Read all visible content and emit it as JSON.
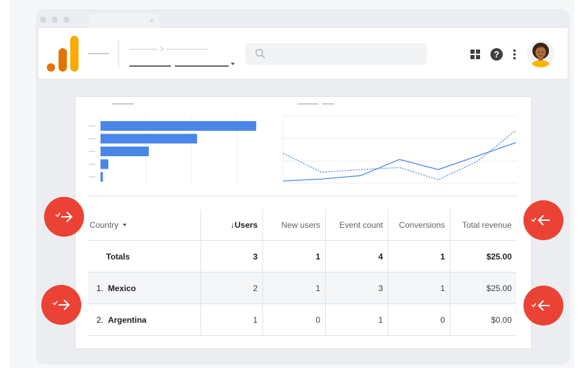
{
  "window": {
    "tab_close_glyph": "×",
    "icons": [
      "apps-grid-icon",
      "help-icon",
      "more-vert-icon",
      "avatar"
    ]
  },
  "colors": {
    "accent_blue": "#4a86e8",
    "fab_red": "#ea4335",
    "logo_orange_dark": "#e37400",
    "logo_orange_light": "#f9ab00"
  },
  "chart_data": [
    {
      "type": "bar",
      "orientation": "horizontal",
      "categories": [
        "",
        "",
        "",
        "",
        ""
      ],
      "values": [
        100,
        62,
        31,
        5,
        1.5
      ],
      "title": "",
      "xlim": [
        0,
        100
      ],
      "grid": true
    },
    {
      "type": "line",
      "x": [
        1,
        2,
        3,
        4,
        5,
        6,
        7
      ],
      "series": [
        {
          "style": "solid",
          "values": [
            1,
            4,
            9,
            33,
            18,
            38,
            58
          ]
        },
        {
          "style": "dotted",
          "values": [
            42,
            14,
            18,
            21,
            3,
            30,
            76
          ]
        }
      ],
      "ylim": [
        0,
        100
      ],
      "grid": true
    }
  ],
  "table": {
    "columns": [
      {
        "key": "country",
        "label": "Country",
        "sort_icon": "arrow-down-icon"
      },
      {
        "key": "users",
        "label": "Users",
        "sort_arrow": "↓"
      },
      {
        "key": "new_users",
        "label": "New users"
      },
      {
        "key": "event_count",
        "label": "Event count"
      },
      {
        "key": "conversions",
        "label": "Conversions"
      },
      {
        "key": "total_revenue",
        "label": "Total revenue"
      }
    ],
    "totals": {
      "label": "Totals",
      "users": "3",
      "new_users": "1",
      "event_count": "4",
      "conversions": "1",
      "total_revenue": "$25.00"
    },
    "rows": [
      {
        "rank": "1.",
        "country": "Mexico",
        "users": "2",
        "new_users": "1",
        "event_count": "3",
        "conversions": "1",
        "total_revenue": "$25.00"
      },
      {
        "rank": "2.",
        "country": "Argentina",
        "users": "1",
        "new_users": "0",
        "event_count": "1",
        "conversions": "0",
        "total_revenue": "$0.00"
      }
    ]
  },
  "fabs": [
    {
      "direction": "right",
      "icon": "check-arrow-right-icon"
    },
    {
      "direction": "left",
      "icon": "check-arrow-left-icon"
    },
    {
      "direction": "right",
      "icon": "check-arrow-right-icon"
    },
    {
      "direction": "left",
      "icon": "check-arrow-left-icon"
    }
  ]
}
